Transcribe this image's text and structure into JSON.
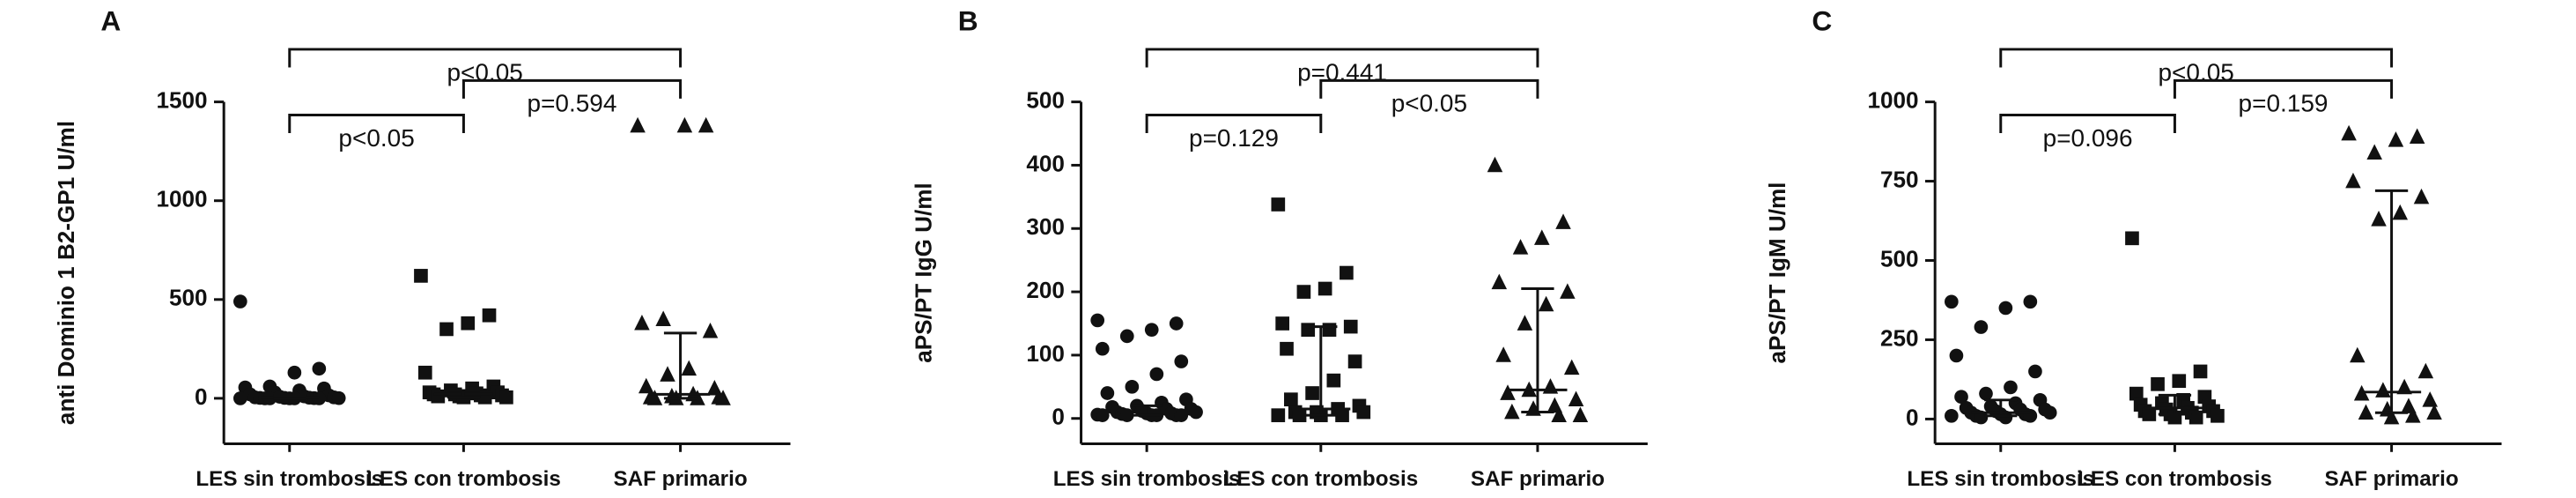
{
  "chart_data": [
    {
      "type": "strip",
      "panel": "A",
      "ylabel": "anti Dominio 1 B2-GP1 U/ml",
      "categories": [
        "LES sin trombosis",
        "LES con trombosis",
        "SAF primario"
      ],
      "markers": [
        "circle",
        "square",
        "triangle"
      ],
      "color": "#111111",
      "values": [
        [
          490,
          150,
          130,
          60,
          55,
          50,
          40,
          30,
          20,
          15,
          10,
          8,
          5,
          5,
          3,
          2,
          2,
          1,
          1,
          0,
          0,
          0,
          0,
          0,
          0
        ],
        [
          620,
          420,
          380,
          350,
          130,
          60,
          50,
          40,
          30,
          30,
          25,
          20,
          20,
          15,
          15,
          10,
          10,
          5,
          5,
          5
        ],
        [
          1380,
          1380,
          1380,
          400,
          380,
          340,
          150,
          120,
          60,
          50,
          20,
          10,
          5,
          5,
          0,
          0,
          0,
          0
        ]
      ],
      "medians": [
        5,
        20,
        20
      ],
      "q1": [
        0,
        5,
        0
      ],
      "q3": [
        15,
        40,
        330
      ],
      "comparisons": [
        {
          "groups": [
            0,
            2
          ],
          "label": "p<0.05"
        },
        {
          "groups": [
            1,
            2
          ],
          "label": "p=0.594"
        },
        {
          "groups": [
            0,
            1
          ],
          "label": "p<0.05"
        }
      ],
      "ylim": [
        -230,
        1500
      ],
      "yticks": [
        0,
        500,
        1000,
        1500
      ]
    },
    {
      "type": "strip",
      "panel": "B",
      "ylabel": "aPS/PT IgG U/ml",
      "categories": [
        "LES sin trombosis",
        "LES con trombosis",
        "SAF primario"
      ],
      "markers": [
        "circle",
        "square",
        "triangle"
      ],
      "color": "#111111",
      "values": [
        [
          155,
          150,
          140,
          130,
          110,
          90,
          70,
          50,
          40,
          30,
          25,
          20,
          18,
          15,
          15,
          12,
          10,
          10,
          8,
          8,
          7,
          6,
          5,
          5,
          5,
          5,
          5,
          5
        ],
        [
          338,
          230,
          205,
          200,
          150,
          145,
          140,
          140,
          110,
          90,
          60,
          40,
          30,
          20,
          15,
          10,
          10,
          10,
          5,
          5,
          5,
          5
        ],
        [
          400,
          310,
          285,
          270,
          215,
          200,
          180,
          150,
          100,
          80,
          50,
          45,
          40,
          30,
          20,
          15,
          10,
          5,
          5
        ]
      ],
      "medians": [
        10,
        15,
        45
      ],
      "q1": [
        5,
        5,
        10
      ],
      "q3": [
        20,
        145,
        205
      ],
      "comparisons": [
        {
          "groups": [
            0,
            2
          ],
          "label": "p=0.441"
        },
        {
          "groups": [
            1,
            2
          ],
          "label": "p<0.05"
        },
        {
          "groups": [
            0,
            1
          ],
          "label": "p=0.129"
        }
      ],
      "ylim": [
        -40,
        500
      ],
      "yticks": [
        0,
        100,
        200,
        300,
        400,
        500
      ]
    },
    {
      "type": "strip",
      "panel": "C",
      "ylabel": "aPS/PT IgM U/ml",
      "categories": [
        "LES sin trombosis",
        "LES con trombosis",
        "SAF primario"
      ],
      "markers": [
        "circle",
        "square",
        "triangle"
      ],
      "color": "#111111",
      "values": [
        [
          370,
          370,
          350,
          290,
          200,
          150,
          100,
          80,
          70,
          60,
          50,
          40,
          35,
          30,
          30,
          25,
          20,
          20,
          15,
          15,
          10,
          10,
          10,
          5,
          5
        ],
        [
          570,
          150,
          120,
          110,
          80,
          70,
          60,
          50,
          45,
          40,
          35,
          30,
          25,
          25,
          20,
          15,
          15,
          10,
          5,
          5
        ],
        [
          900,
          890,
          880,
          840,
          750,
          700,
          650,
          630,
          200,
          150,
          100,
          90,
          80,
          60,
          40,
          30,
          20,
          20,
          10,
          5
        ]
      ],
      "medians": [
        20,
        35,
        85
      ],
      "q1": [
        10,
        15,
        20
      ],
      "q3": [
        60,
        75,
        720
      ],
      "comparisons": [
        {
          "groups": [
            0,
            2
          ],
          "label": "p<0.05"
        },
        {
          "groups": [
            1,
            2
          ],
          "label": "p=0.159"
        },
        {
          "groups": [
            0,
            1
          ],
          "label": "p=0.096"
        }
      ],
      "ylim": [
        -78,
        1000
      ],
      "yticks": [
        0,
        250,
        500,
        750,
        1000
      ]
    }
  ]
}
